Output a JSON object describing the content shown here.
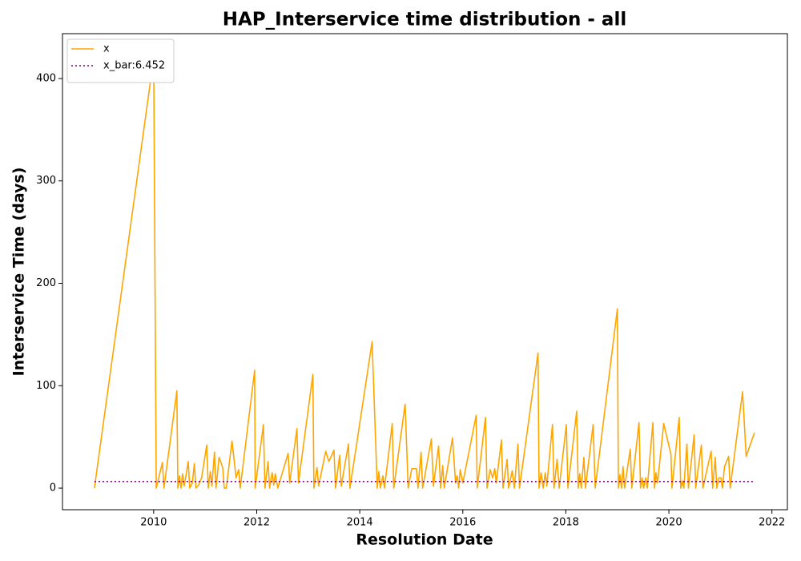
{
  "chart_data": {
    "type": "line",
    "title": "HAP_Interservice time distribution - all",
    "xlabel": "Resolution Date",
    "ylabel": "Interservice Time (days)",
    "xlim": [
      2008.23,
      2022.3
    ],
    "ylim": [
      -21.1,
      443.8
    ],
    "xticks": [
      2010,
      2012,
      2014,
      2016,
      2018,
      2020,
      2022
    ],
    "yticks": [
      0,
      100,
      200,
      300,
      400
    ],
    "legend": "upper left",
    "series": [
      {
        "name": "x",
        "color": "#ffa500",
        "linestyle": "solid",
        "x": [
          2008.85,
          2010.0,
          2010.05,
          2010.17,
          2010.2,
          2010.45,
          2010.47,
          2010.5,
          2010.53,
          2010.56,
          2010.59,
          2010.62,
          2010.67,
          2010.7,
          2010.75,
          2010.79,
          2010.82,
          2010.87,
          2010.93,
          2011.03,
          2011.06,
          2011.1,
          2011.13,
          2011.18,
          2011.21,
          2011.27,
          2011.34,
          2011.37,
          2011.41,
          2011.52,
          2011.6,
          2011.65,
          2011.68,
          2011.96,
          2011.97,
          2012.13,
          2012.16,
          2012.22,
          2012.25,
          2012.3,
          2012.33,
          2012.36,
          2012.41,
          2012.61,
          2012.64,
          2012.78,
          2012.81,
          2013.09,
          2013.11,
          2013.17,
          2013.2,
          2013.34,
          2013.4,
          2013.5,
          2013.53,
          2013.61,
          2013.64,
          2013.78,
          2013.81,
          2014.24,
          2014.34,
          2014.37,
          2014.4,
          2014.45,
          2014.48,
          2014.63,
          2014.66,
          2014.88,
          2014.94,
          2015.01,
          2015.1,
          2015.13,
          2015.19,
          2015.22,
          2015.39,
          2015.43,
          2015.53,
          2015.57,
          2015.61,
          2015.64,
          2015.8,
          2015.86,
          2015.89,
          2015.92,
          2015.95,
          2016.0,
          2016.26,
          2016.28,
          2016.44,
          2016.47,
          2016.53,
          2016.58,
          2016.62,
          2016.65,
          2016.75,
          2016.78,
          2016.86,
          2016.89,
          2016.96,
          2017.0,
          2017.07,
          2017.1,
          2017.46,
          2017.48,
          2017.52,
          2017.56,
          2017.6,
          2017.63,
          2017.74,
          2017.77,
          2017.83,
          2017.87,
          2018.01,
          2018.04,
          2018.21,
          2018.24,
          2018.27,
          2018.3,
          2018.35,
          2018.38,
          2018.53,
          2018.57,
          2019.0,
          2019.02,
          2019.05,
          2019.08,
          2019.11,
          2019.14,
          2019.25,
          2019.28,
          2019.42,
          2019.45,
          2019.48,
          2019.51,
          2019.55,
          2019.58,
          2019.69,
          2019.72,
          2019.75,
          2019.78,
          2019.9,
          2020.04,
          2020.06,
          2020.2,
          2020.23,
          2020.26,
          2020.29,
          2020.35,
          2020.38,
          2020.49,
          2020.52,
          2020.63,
          2020.66,
          2020.82,
          2020.85,
          2020.9,
          2020.93,
          2020.97,
          2021.01,
          2021.04,
          2021.08,
          2021.16,
          2021.19,
          2021.43,
          2021.5,
          2021.66
        ],
        "values": [
          0,
          420,
          0,
          25,
          0,
          95,
          0,
          12,
          0,
          14,
          2,
          10,
          26,
          0,
          5,
          24,
          0,
          3,
          10,
          42,
          0,
          16,
          2,
          35,
          0,
          30,
          20,
          0,
          0,
          46,
          10,
          18,
          0,
          115,
          0,
          62,
          0,
          26,
          0,
          15,
          3,
          14,
          0,
          34,
          5,
          58,
          5,
          111,
          0,
          20,
          2,
          36,
          26,
          37,
          0,
          32,
          2,
          43,
          0,
          143,
          0,
          16,
          0,
          12,
          0,
          63,
          0,
          82,
          0,
          19,
          19,
          0,
          35,
          0,
          48,
          2,
          41,
          0,
          22,
          0,
          49,
          5,
          12,
          0,
          18,
          5,
          71,
          0,
          69,
          0,
          18,
          10,
          19,
          5,
          47,
          0,
          28,
          0,
          17,
          0,
          43,
          0,
          132,
          0,
          15,
          0,
          15,
          2,
          62,
          0,
          28,
          0,
          62,
          0,
          75,
          0,
          14,
          0,
          30,
          0,
          62,
          0,
          175,
          0,
          13,
          0,
          21,
          0,
          38,
          0,
          64,
          0,
          10,
          0,
          10,
          0,
          64,
          0,
          15,
          5,
          63,
          33,
          0,
          69,
          0,
          7,
          0,
          43,
          0,
          52,
          0,
          42,
          0,
          36,
          0,
          30,
          0,
          10,
          10,
          0,
          21,
          31,
          0,
          94,
          31,
          54
        ]
      },
      {
        "name": "x_bar:6.452",
        "color": "#800080",
        "linestyle": "dotted",
        "x": [
          2008.85,
          2021.66
        ],
        "values": [
          6.452,
          6.452
        ]
      }
    ]
  }
}
